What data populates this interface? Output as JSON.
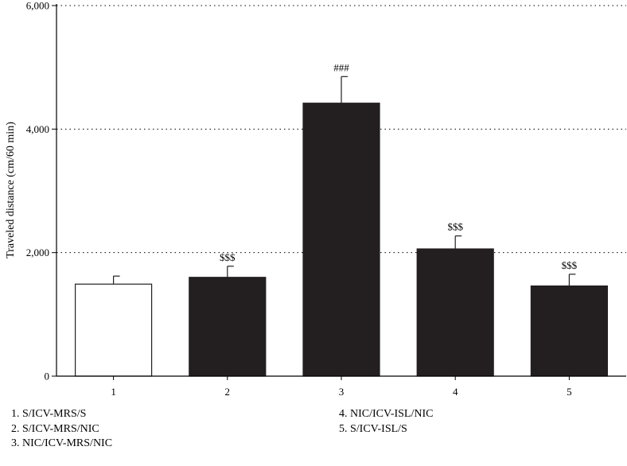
{
  "chart_data": {
    "type": "bar",
    "categories": [
      "1",
      "2",
      "3",
      "4",
      "5"
    ],
    "values": [
      1490,
      1600,
      4420,
      2060,
      1460
    ],
    "errors": [
      130,
      180,
      430,
      210,
      190
    ],
    "fills": [
      "#ffffff",
      "#231f20",
      "#231f20",
      "#231f20",
      "#231f20"
    ],
    "annotations": [
      "",
      "$$$",
      "###",
      "$$$",
      "$$$"
    ],
    "ylabel": "Traveled distance (cm/60 min)",
    "xlabel": "",
    "ylim": [
      0,
      6000
    ],
    "yticks": [
      0,
      2000,
      4000,
      6000
    ],
    "ytick_labels": [
      "0",
      "2,000",
      "4,000",
      "6,000"
    ],
    "grid": "horizontal dotted",
    "legend": [
      "1. S/ICV-MRS/S",
      "2. S/ICV-MRS/NIC",
      "3. NIC/ICV-MRS/NIC",
      "4. NIC/ICV-ISL/NIC",
      "5. S/ICV-ISL/S"
    ]
  }
}
